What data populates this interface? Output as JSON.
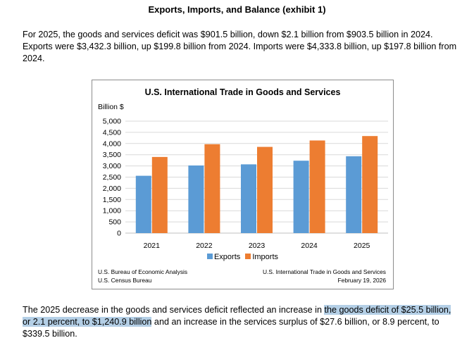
{
  "heading": "Exports, Imports, and Balance (exhibit 1)",
  "intro": "For 2025, the goods and services deficit was $901.5 billion, down $2.1 billion from $903.5 billion in 2024. Exports were $3,432.3 billion, up $199.8 billion from 2024. Imports were $4,333.8 billion, up $197.8 billion from 2024.",
  "closing": {
    "before": "The 2025 decrease in the goods and services deficit reflected an increase in ",
    "highlighted": "the goods deficit of $25.5 billion, or 2.1 percent, to $1,240.9 billion",
    "after": " and an increase in the services surplus of $27.6 billion, or 8.9 percent, to $339.5 billion."
  },
  "chart_data": {
    "type": "bar",
    "title": "U.S. International Trade in Goods and Services",
    "ylabel": "Billion $",
    "xlabel": "",
    "categories": [
      "2021",
      "2022",
      "2023",
      "2024",
      "2025"
    ],
    "series": [
      {
        "name": "Exports",
        "color": "#5b9bd5",
        "values": [
          2560,
          3020,
          3070,
          3232.5,
          3432.3
        ]
      },
      {
        "name": "Imports",
        "color": "#ed7d31",
        "values": [
          3400,
          3970,
          3850,
          4136,
          4333.8
        ]
      }
    ],
    "ylim": [
      0,
      5000
    ],
    "yticks": [
      0,
      500,
      1000,
      1500,
      2000,
      2500,
      3000,
      3500,
      4000,
      4500,
      5000
    ],
    "ytick_labels": [
      "0",
      "500",
      "1,000",
      "1,500",
      "2,000",
      "2,500",
      "3,000",
      "3,500",
      "4,000",
      "4,500",
      "5,000"
    ],
    "grid": true,
    "legend": "bottom-center"
  },
  "source": {
    "left": [
      "U.S. Bureau of Economic Analysis",
      "U.S. Census Bureau"
    ],
    "right": [
      "U.S. International Trade in Goods and Services",
      "February 19, 2026"
    ]
  }
}
